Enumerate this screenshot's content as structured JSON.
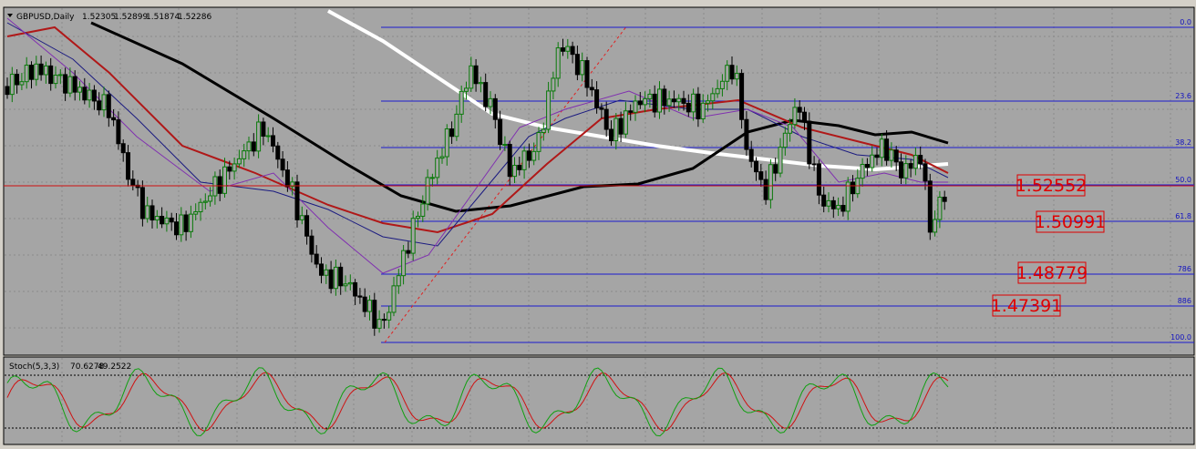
{
  "header": {
    "symbol": "GBPUSD,Daily",
    "prices": [
      "1.52305",
      "1.52899",
      "1.51874",
      "1.52286"
    ]
  },
  "fibonacci": {
    "levels": [
      "0.0",
      "23.6",
      "38.2",
      "50.0",
      "61.8",
      "786",
      "886",
      "100.0"
    ]
  },
  "price_boxes": [
    "1.52552",
    "1.50991",
    "1.48779",
    "1.47391"
  ],
  "indicator": {
    "name": "Stoch(5,3,3)",
    "values": [
      "70.6278",
      "49.2522"
    ]
  }
}
